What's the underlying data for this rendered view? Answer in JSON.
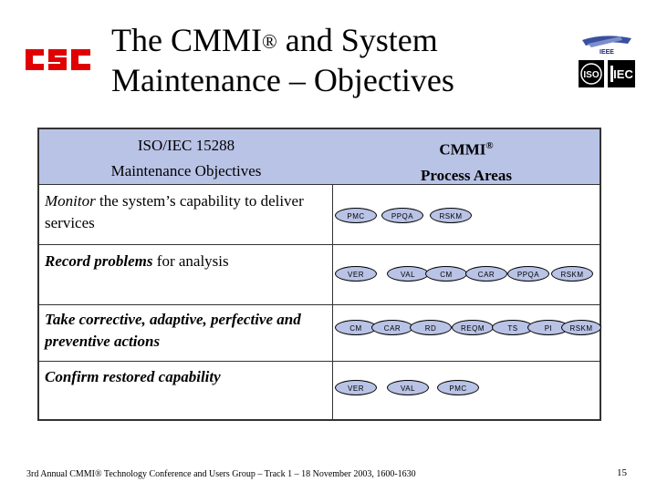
{
  "title": {
    "line1": "The CMMI",
    "reg": "®",
    "line1_rest": " and System",
    "line2": "Maintenance – Objectives"
  },
  "logos": {
    "csc_text": "csc",
    "ieee_text": "IEEE",
    "iso_text": "ISO",
    "iec_text": "IEC"
  },
  "table": {
    "header_left_line1": "ISO/IEC 15288",
    "header_left_line2": "Maintenance Objectives",
    "header_right_line1": "CMMI",
    "header_right_reg": "®",
    "header_right_line2": "Process Areas",
    "rows": [
      {
        "emph": "Monitor",
        "rest": " the system’s capability to deliver services",
        "areas": [
          "PMC",
          "PPQA",
          "RSKM"
        ]
      },
      {
        "emph": "Record problems",
        "rest": " for analysis",
        "areas": [
          "VER",
          "VAL",
          "CM",
          "CAR",
          "PPQA",
          "RSKM"
        ]
      },
      {
        "emph": "Take corrective, adaptive, perfective and preventive actions",
        "rest": "",
        "areas": [
          "CM",
          "CAR",
          "RD",
          "REQM",
          "TS",
          "PI",
          "RSKM"
        ]
      },
      {
        "emph": "Confirm restored capability",
        "rest": "",
        "areas": [
          "VER",
          "VAL",
          "PMC"
        ]
      }
    ]
  },
  "footer": "3rd Annual CMMI® Technology Conference and Users Group – Track 1 – 18 November 2003, 1600-1630",
  "page_number": "15",
  "colors": {
    "header_fill": "#b9c3e6",
    "pill_fill": "#b9c3e6",
    "csc_red": "#e00000"
  }
}
